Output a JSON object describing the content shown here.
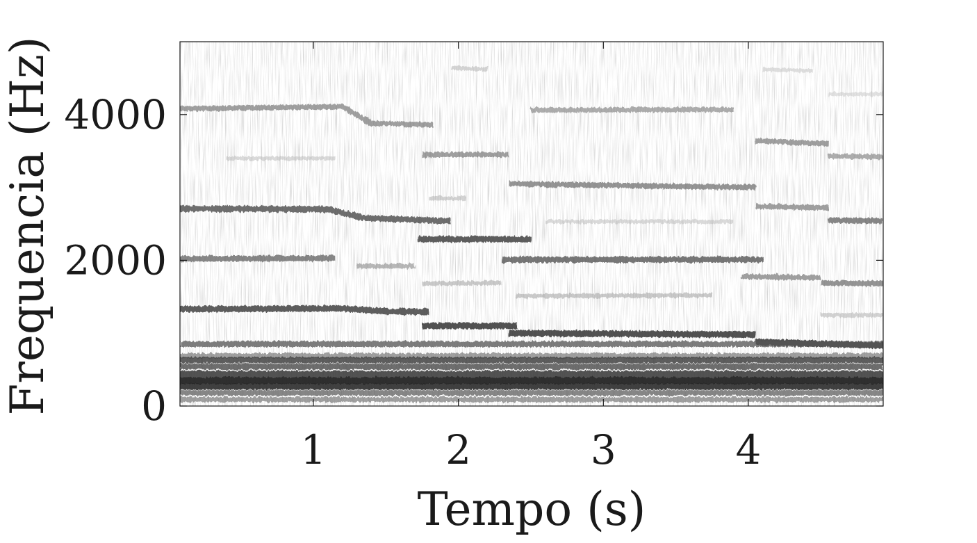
{
  "chart_data": {
    "type": "heatmap",
    "subtype": "spectrogram",
    "colormap": "grayscale-inverted",
    "title": "",
    "xlabel": "Tempo (s)",
    "ylabel": "Frequencia (Hz)",
    "xlim": [
      0.08,
      4.93
    ],
    "ylim": [
      0,
      5000
    ],
    "x_ticks": [
      1,
      2,
      3,
      4
    ],
    "x_tick_labels": [
      "1",
      "2",
      "3",
      "4"
    ],
    "y_ticks": [
      0,
      2000,
      4000
    ],
    "y_tick_labels": [
      "0",
      "2000",
      "4000"
    ],
    "grid": false,
    "legend": "none",
    "bands": [
      {
        "t": [
          0.08,
          1.2,
          1.4,
          1.83
        ],
        "f": [
          4080,
          4110,
          3880,
          3860
        ],
        "intensity": 0.55
      },
      {
        "t": [
          0.4,
          1.15
        ],
        "f": [
          3400,
          3400
        ],
        "intensity": 0.25
      },
      {
        "t": [
          1.95,
          2.2
        ],
        "f": [
          4640,
          4620
        ],
        "intensity": 0.28
      },
      {
        "t": [
          1.75,
          2.35
        ],
        "f": [
          3450,
          3450
        ],
        "intensity": 0.55
      },
      {
        "t": [
          2.5,
          3.9
        ],
        "f": [
          4060,
          4070
        ],
        "intensity": 0.5
      },
      {
        "t": [
          2.35,
          4.05
        ],
        "f": [
          3050,
          3000
        ],
        "intensity": 0.6
      },
      {
        "t": [
          4.05,
          4.55
        ],
        "f": [
          3640,
          3600
        ],
        "intensity": 0.55
      },
      {
        "t": [
          4.1,
          4.45
        ],
        "f": [
          4620,
          4600
        ],
        "intensity": 0.22
      },
      {
        "t": [
          4.55,
          4.93
        ],
        "f": [
          3430,
          3420
        ],
        "intensity": 0.5
      },
      {
        "t": [
          4.55,
          4.93
        ],
        "f": [
          4280,
          4280
        ],
        "intensity": 0.2
      },
      {
        "t": [
          0.08,
          1.1,
          1.35,
          1.95
        ],
        "f": [
          2710,
          2700,
          2580,
          2540
        ],
        "intensity": 0.75
      },
      {
        "t": [
          1.72,
          2.5
        ],
        "f": [
          2290,
          2290
        ],
        "intensity": 0.8
      },
      {
        "t": [
          1.8,
          2.05
        ],
        "f": [
          2850,
          2850
        ],
        "intensity": 0.3
      },
      {
        "t": [
          2.6,
          3.9
        ],
        "f": [
          2530,
          2530
        ],
        "intensity": 0.25
      },
      {
        "t": [
          4.05,
          4.55
        ],
        "f": [
          2740,
          2720
        ],
        "intensity": 0.55
      },
      {
        "t": [
          4.55,
          4.93
        ],
        "f": [
          2550,
          2540
        ],
        "intensity": 0.65
      },
      {
        "t": [
          0.08,
          1.15
        ],
        "f": [
          2020,
          2030
        ],
        "intensity": 0.65
      },
      {
        "t": [
          1.3,
          1.7
        ],
        "f": [
          1920,
          1920
        ],
        "intensity": 0.45
      },
      {
        "t": [
          2.3,
          4.1
        ],
        "f": [
          2010,
          2010
        ],
        "intensity": 0.72
      },
      {
        "t": [
          1.75,
          2.3
        ],
        "f": [
          1680,
          1690
        ],
        "intensity": 0.35
      },
      {
        "t": [
          2.4,
          3.75
        ],
        "f": [
          1510,
          1520
        ],
        "intensity": 0.35
      },
      {
        "t": [
          3.95,
          4.5
        ],
        "f": [
          1780,
          1760
        ],
        "intensity": 0.55
      },
      {
        "t": [
          4.5,
          4.93
        ],
        "f": [
          1690,
          1680
        ],
        "intensity": 0.6
      },
      {
        "t": [
          0.08,
          1.2,
          1.5,
          1.8
        ],
        "f": [
          1330,
          1340,
          1300,
          1290
        ],
        "intensity": 0.8
      },
      {
        "t": [
          1.75,
          2.4
        ],
        "f": [
          1100,
          1100
        ],
        "intensity": 0.85
      },
      {
        "t": [
          2.35,
          4.05
        ],
        "f": [
          1000,
          980
        ],
        "intensity": 0.85
      },
      {
        "t": [
          4.05,
          4.93
        ],
        "f": [
          880,
          830
        ],
        "intensity": 0.85
      },
      {
        "t": [
          4.5,
          4.93
        ],
        "f": [
          1250,
          1250
        ],
        "intensity": 0.3
      },
      {
        "t": [
          0.08,
          4.93
        ],
        "f": [
          850,
          850
        ],
        "intensity": 0.7
      },
      {
        "t": [
          0.08,
          4.93
        ],
        "f": [
          690,
          690
        ],
        "intensity": 0.55
      },
      {
        "t": [
          0.08,
          4.93
        ],
        "f": [
          630,
          630
        ],
        "intensity": 0.8
      },
      {
        "t": [
          0.08,
          4.93
        ],
        "f": [
          540,
          540
        ],
        "intensity": 0.75
      },
      {
        "t": [
          0.08,
          4.93
        ],
        "f": [
          440,
          440
        ],
        "intensity": 0.85
      },
      {
        "t": [
          0.08,
          4.93
        ],
        "f": [
          350,
          350
        ],
        "intensity": 0.95
      },
      {
        "t": [
          0.08,
          4.93
        ],
        "f": [
          270,
          270
        ],
        "intensity": 0.9
      },
      {
        "t": [
          0.08,
          4.93
        ],
        "f": [
          180,
          180
        ],
        "intensity": 0.65
      },
      {
        "t": [
          0.08,
          4.93
        ],
        "f": [
          90,
          90
        ],
        "intensity": 0.55
      }
    ]
  }
}
